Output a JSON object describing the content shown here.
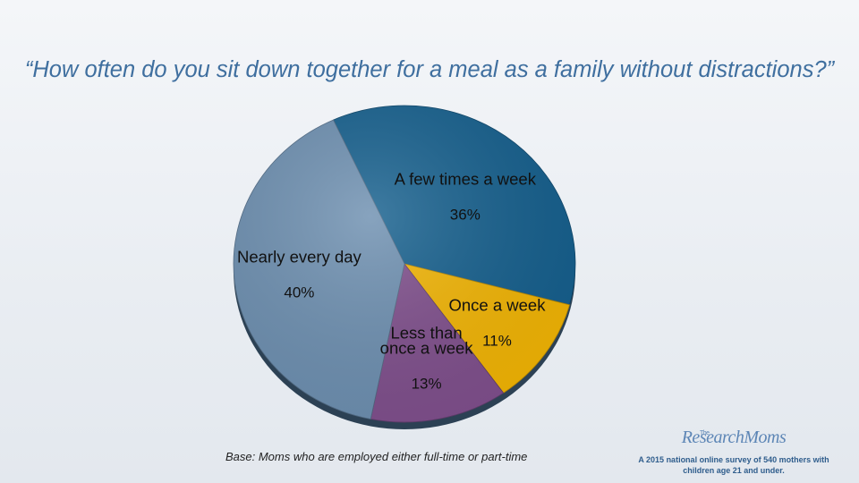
{
  "chart_data": {
    "type": "pie",
    "title": "“How often do you sit down together for a meal as a family without distractions?”",
    "slices": [
      {
        "label": "A few times a week",
        "value": 36,
        "value_label": "36%",
        "color": "#155f8d"
      },
      {
        "label": "Once a week",
        "value": 11,
        "value_label": "11%",
        "color": "#f1b404"
      },
      {
        "label": "Less than once a week",
        "value": 13,
        "value_label": "13%",
        "color": "#7f4f8c"
      },
      {
        "label": "Nearly every day",
        "value": 40,
        "value_label": "40%",
        "color": "#6d8fb0"
      }
    ]
  },
  "footer": {
    "base_note": "Base:  Moms who are employed either full-time or part-time",
    "logo_text": "ResearchMoms",
    "logo_small": "The",
    "survey_note": "A 2015 national online survey of 540 mothers with children age 21 and under."
  }
}
